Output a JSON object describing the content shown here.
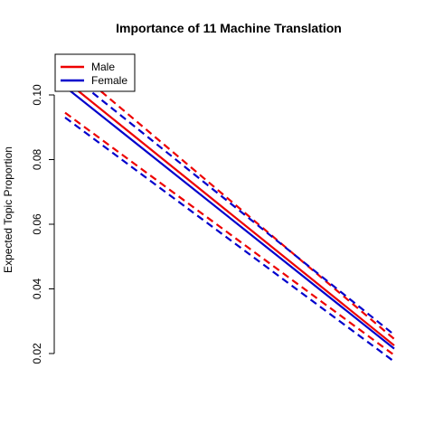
{
  "chart_data": {
    "type": "line",
    "title": "Importance of 11 Machine Translation",
    "xlabel": "",
    "ylabel": "Expected Topic Proportion",
    "ylim": [
      0.018,
      0.104
    ],
    "y_ticks": [
      0.02,
      0.04,
      0.06,
      0.08,
      0.1
    ],
    "y_tick_labels": [
      "0.02",
      "0.04",
      "0.06",
      "0.08",
      "0.10"
    ],
    "x_axis_shown": false,
    "x": [
      0,
      1
    ],
    "legend": {
      "position": "top-left",
      "entries": [
        {
          "label": "Male",
          "color": "#ee0000"
        },
        {
          "label": "Female",
          "color": "#0000cc"
        }
      ]
    },
    "series": [
      {
        "name": "Male",
        "role": "estimate",
        "style": "solid",
        "color": "#ee0000",
        "values": [
          0.1045,
          0.0225
        ]
      },
      {
        "name": "Male",
        "role": "upper",
        "style": "dashed",
        "color": "#ee0000",
        "values": [
          0.1105,
          0.0245
        ]
      },
      {
        "name": "Male",
        "role": "lower",
        "style": "dashed",
        "color": "#ee0000",
        "values": [
          0.0945,
          0.0195
        ]
      },
      {
        "name": "Female",
        "role": "estimate",
        "style": "solid",
        "color": "#0000cc",
        "values": [
          0.1025,
          0.0215
        ]
      },
      {
        "name": "Female",
        "role": "upper",
        "style": "dashed",
        "color": "#0000cc",
        "values": [
          0.1075,
          0.0258
        ]
      },
      {
        "name": "Female",
        "role": "lower",
        "style": "dashed",
        "color": "#0000cc",
        "values": [
          0.093,
          0.0175
        ]
      }
    ]
  }
}
